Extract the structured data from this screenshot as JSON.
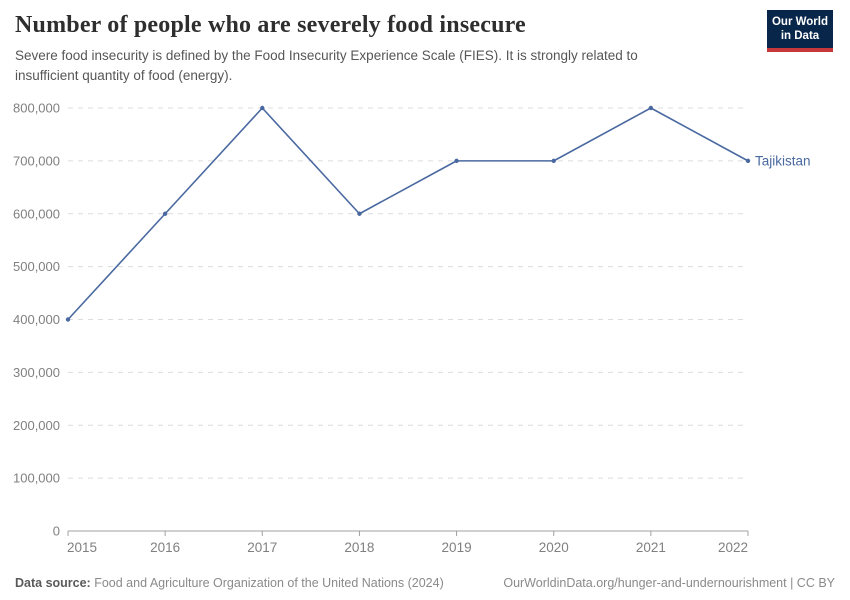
{
  "header": {
    "title": "Number of people who are severely food insecure",
    "subtitle": "Severe food insecurity is defined by the Food Insecurity Experience Scale (FIES). It is strongly related to insufficient quantity of food (energy).",
    "logo": {
      "line1": "Our World",
      "line2": "in Data",
      "bg_color": "#08254a",
      "accent_color": "#c7383b"
    }
  },
  "chart_data": {
    "type": "line",
    "title": "Number of people who are severely food insecure",
    "x": [
      2015,
      2016,
      2017,
      2018,
      2019,
      2020,
      2021,
      2022
    ],
    "series": [
      {
        "name": "Tajikistan",
        "color": "#4a69a0",
        "values": [
          400000,
          600000,
          800000,
          600000,
          700000,
          700000,
          800000,
          700000
        ]
      }
    ],
    "xlabel": "",
    "ylabel": "",
    "ylim": [
      0,
      800000
    ],
    "ytick_interval": 100000,
    "grid": "horizontal-dashed",
    "grid_color": "#dcdcdc",
    "axis_color": "#a0a0a0",
    "tick_label_color": "#808080",
    "legend": "line-end-label"
  },
  "footer": {
    "datasource_label": "Data source:",
    "datasource_text": "Food and Agriculture Organization of the United Nations (2024)",
    "credit": "OurWorldinData.org/hunger-and-undernourishment | CC BY"
  }
}
